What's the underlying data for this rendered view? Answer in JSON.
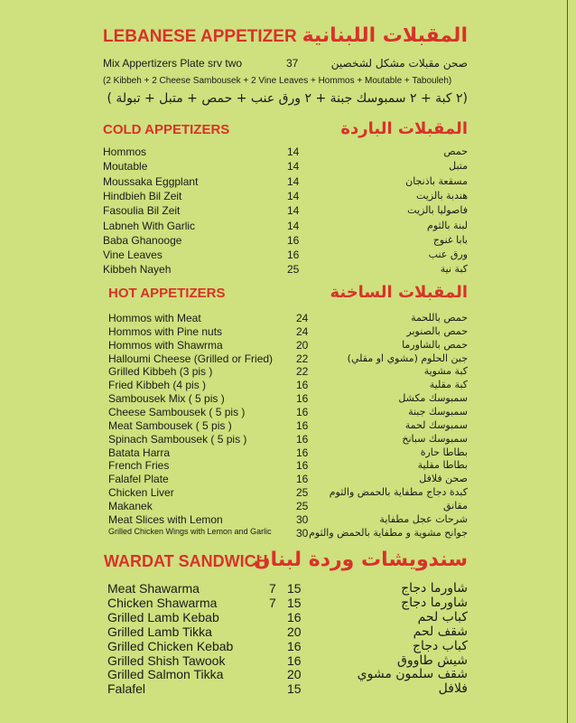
{
  "colors": {
    "background": "#cfe07e",
    "heading": "#d8322a"
  },
  "lebanese": {
    "title_en": "LEBANESE APPETIZER",
    "title_ar": "المقبلات اللبنانية",
    "mix_name": "Mix Appertizers Plate srv two",
    "mix_price": "37",
    "mix_ar": "صحن مقبلات مشكل لشخصين",
    "contents_en": "(2 Kibbeh + 2 Cheese Sambousek + 2 Vine Leaves + Hommos + Moutable + Tabouleh)",
    "contents_ar": "(٢ كبة + ٢ سمبوسك جبنة + ٢ ورق عنب + حمص + متبل + تبولة )"
  },
  "cold": {
    "title_en": "COLD APPETIZERS",
    "title_ar": "المقبلات الباردة",
    "items": [
      {
        "en": "Hommos",
        "price": "14",
        "ar": "حمص"
      },
      {
        "en": "Moutable",
        "price": "14",
        "ar": "متبل"
      },
      {
        "en": "Moussaka Eggplant",
        "price": "14",
        "ar": "مسقعة باذنجان"
      },
      {
        "en": "Hindbieh Bil Zeit",
        "price": "14",
        "ar": "هندبة بالزيت"
      },
      {
        "en": "Fasoulia Bil Zeit",
        "price": "14",
        "ar": "فاصوليا بالزيت"
      },
      {
        "en": "Labneh With Garlic",
        "price": "14",
        "ar": "لبنة بالثوم"
      },
      {
        "en": "Baba Ghanooge",
        "price": "16",
        "ar": "بابا غنوج"
      },
      {
        "en": "Vine Leaves",
        "price": "16",
        "ar": "ورق عنب"
      },
      {
        "en": "Kibbeh Nayeh",
        "price": "25",
        "ar": "كبة نية"
      }
    ]
  },
  "hot": {
    "title_en": "HOT APPETIZERS",
    "title_ar": "المقبلات الساخنة",
    "items": [
      {
        "en": "Hommos with Meat",
        "price": "24",
        "ar": "حمص باللحمة"
      },
      {
        "en": "Hommos with Pine nuts",
        "price": "24",
        "ar": "حمص بالصنوبر"
      },
      {
        "en": "Hommos with Shawrma",
        "price": "20",
        "ar": "حمص بالشاورما"
      },
      {
        "en": "Halloumi Cheese (Grilled or Fried)",
        "price": "22",
        "ar": "جبن الحلوم (مشوي او مقلي)"
      },
      {
        "en": "Grilled Kibbeh (3 pis )",
        "price": "22",
        "ar": "كبة مشوية"
      },
      {
        "en": "Fried Kibbeh (4 pis )",
        "price": "16",
        "ar": "كبة مقلية"
      },
      {
        "en": "Sambousek Mix ( 5 pis )",
        "price": "16",
        "ar": "سمبوسك مكشل"
      },
      {
        "en": "Cheese Sambousek ( 5 pis )",
        "price": "16",
        "ar": "سمبوسك جبنة"
      },
      {
        "en": "Meat Sambousek ( 5 pis )",
        "price": "16",
        "ar": "سمبوسك لحمة"
      },
      {
        "en": "Spinach Sambousek ( 5 pis )",
        "price": "16",
        "ar": "سمبوسك سبانخ"
      },
      {
        "en": "Batata Harra",
        "price": "16",
        "ar": "بطاطا حارة"
      },
      {
        "en": "French Fries",
        "price": "16",
        "ar": "بطاطا مقلية"
      },
      {
        "en": "Falafel Plate",
        "price": "16",
        "ar": "صحن فلافل"
      },
      {
        "en": "Chicken Liver",
        "price": "25",
        "ar": "كبدة دجاج مطفاية بالحمض والثوم"
      },
      {
        "en": "Makanek",
        "price": "25",
        "ar": "مقانق"
      },
      {
        "en": "Meat Slices with Lemon",
        "price": "30",
        "ar": "شرحات عجل مطفاية"
      },
      {
        "en": "Grilled Chicken Wings with Lemon and Garlic",
        "price": "30",
        "ar": "جوانح مشوية و مطفاية بالحمض والثوم"
      }
    ]
  },
  "sandwich": {
    "title_en": "WARDAT SANDWICH",
    "title_ar": "سندويشات وردة لبنان",
    "items": [
      {
        "en": "Meat Shawarma",
        "small": "7",
        "price": "15",
        "ar": "شاورما دجاج"
      },
      {
        "en": "Chicken Shawarma",
        "small": "7",
        "price": "15",
        "ar": "شاورما دجاج"
      },
      {
        "en": "Grilled Lamb Kebab",
        "small": "",
        "price": "16",
        "ar": "كباب لحم"
      },
      {
        "en": "Grilled Lamb Tikka",
        "small": "",
        "price": "20",
        "ar": "شقف لحم"
      },
      {
        "en": "Grilled Chicken Kebab",
        "small": "",
        "price": "16",
        "ar": "كباب دجاج"
      },
      {
        "en": "Grilled Shish Tawook",
        "small": "",
        "price": "16",
        "ar": "شيش طاووق"
      },
      {
        "en": "Grilled Salmon Tikka",
        "small": "",
        "price": "20",
        "ar": "شقف سلمون مشوي"
      },
      {
        "en": "Falafel",
        "small": "",
        "price": "15",
        "ar": "فلافل"
      }
    ]
  }
}
